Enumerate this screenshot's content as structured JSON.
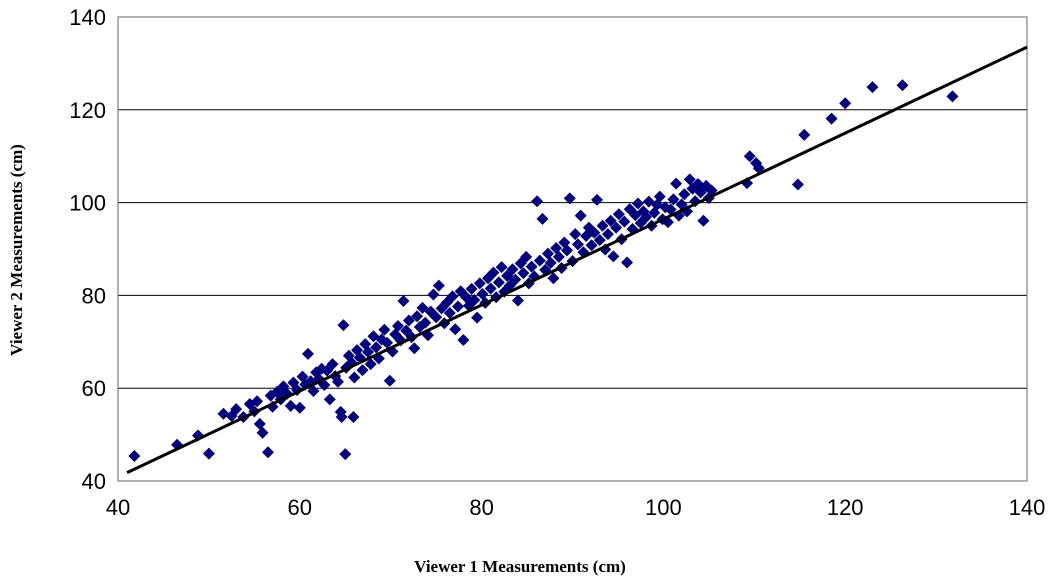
{
  "chart_data": {
    "type": "scatter",
    "title": "",
    "xlabel": "Viewer 1 Measurements (cm)",
    "ylabel": "Viewer 2 Measurements (cm)",
    "xlim": [
      40,
      140
    ],
    "ylim": [
      40,
      140
    ],
    "x_ticks": [
      "40",
      "60",
      "80",
      "100",
      "120",
      "140"
    ],
    "y_ticks": [
      "40",
      "60",
      "80",
      "100",
      "120",
      "140"
    ],
    "grid": "horizontal major gridlines",
    "legend": "none",
    "marker": "diamond",
    "colors": {
      "points": "#000080",
      "trendline": "#000000",
      "grid": "#000000",
      "frame": "#808080"
    },
    "trendline": {
      "type": "linear",
      "x": [
        41,
        140
      ],
      "y": [
        41.8,
        133.5
      ]
    },
    "series": [
      {
        "name": "",
        "points": [
          [
            41.8,
            45.4
          ],
          [
            46.5,
            47.8
          ],
          [
            48.8,
            49.8
          ],
          [
            50.0,
            45.9
          ],
          [
            51.6,
            54.5
          ],
          [
            52.5,
            54.0
          ],
          [
            53.0,
            55.5
          ],
          [
            53.8,
            53.8
          ],
          [
            54.5,
            56.6
          ],
          [
            55.0,
            55.0
          ],
          [
            55.3,
            57.2
          ],
          [
            55.6,
            52.3
          ],
          [
            55.9,
            50.4
          ],
          [
            56.5,
            46.2
          ],
          [
            56.8,
            58.4
          ],
          [
            57.0,
            56.0
          ],
          [
            57.5,
            59.2
          ],
          [
            57.9,
            57.6
          ],
          [
            58.2,
            60.4
          ],
          [
            58.6,
            58.8
          ],
          [
            59.0,
            56.2
          ],
          [
            59.3,
            61.2
          ],
          [
            59.7,
            59.6
          ],
          [
            60.0,
            55.8
          ],
          [
            60.3,
            62.5
          ],
          [
            60.6,
            60.8
          ],
          [
            60.9,
            67.4
          ],
          [
            61.2,
            61.5
          ],
          [
            61.5,
            59.4
          ],
          [
            61.8,
            63.4
          ],
          [
            62.1,
            62.0
          ],
          [
            62.4,
            64.2
          ],
          [
            62.7,
            60.7
          ],
          [
            63.0,
            63.8
          ],
          [
            63.3,
            57.6
          ],
          [
            63.6,
            65.2
          ],
          [
            63.9,
            62.6
          ],
          [
            64.2,
            61.4
          ],
          [
            64.5,
            54.9
          ],
          [
            64.6,
            53.8
          ],
          [
            64.8,
            73.6
          ],
          [
            65.0,
            45.8
          ],
          [
            65.1,
            64.4
          ],
          [
            65.4,
            67.0
          ],
          [
            65.7,
            65.5
          ],
          [
            65.9,
            53.8
          ],
          [
            66.0,
            62.3
          ],
          [
            66.3,
            68.2
          ],
          [
            66.6,
            66.6
          ],
          [
            66.9,
            63.9
          ],
          [
            67.2,
            69.5
          ],
          [
            67.5,
            67.8
          ],
          [
            67.8,
            65.2
          ],
          [
            68.1,
            71.2
          ],
          [
            68.4,
            68.8
          ],
          [
            68.7,
            66.4
          ],
          [
            69.0,
            70.5
          ],
          [
            69.3,
            72.6
          ],
          [
            69.6,
            69.8
          ],
          [
            69.9,
            61.6
          ],
          [
            70.2,
            67.9
          ],
          [
            70.5,
            71.6
          ],
          [
            70.8,
            73.4
          ],
          [
            71.1,
            70.3
          ],
          [
            71.4,
            78.8
          ],
          [
            71.7,
            72.4
          ],
          [
            72.0,
            74.6
          ],
          [
            72.3,
            71.0
          ],
          [
            72.6,
            68.6
          ],
          [
            72.9,
            75.5
          ],
          [
            73.2,
            73.2
          ],
          [
            73.5,
            77.3
          ],
          [
            73.8,
            74.1
          ],
          [
            74.1,
            71.4
          ],
          [
            74.4,
            76.5
          ],
          [
            74.7,
            80.2
          ],
          [
            75.0,
            75.3
          ],
          [
            75.3,
            82.1
          ],
          [
            75.6,
            77.2
          ],
          [
            75.9,
            74.0
          ],
          [
            76.2,
            78.5
          ],
          [
            76.5,
            76.2
          ],
          [
            76.8,
            79.8
          ],
          [
            77.1,
            72.7
          ],
          [
            77.4,
            77.6
          ],
          [
            77.7,
            80.9
          ],
          [
            78.0,
            70.4
          ],
          [
            78.3,
            79.6
          ],
          [
            78.6,
            77.8
          ],
          [
            78.9,
            81.4
          ],
          [
            79.2,
            79.0
          ],
          [
            79.5,
            75.2
          ],
          [
            79.8,
            82.6
          ],
          [
            80.1,
            80.3
          ],
          [
            80.4,
            78.4
          ],
          [
            80.7,
            83.7
          ],
          [
            81.0,
            81.5
          ],
          [
            81.3,
            84.9
          ],
          [
            81.6,
            79.6
          ],
          [
            81.9,
            82.8
          ],
          [
            82.2,
            86.1
          ],
          [
            82.5,
            80.8
          ],
          [
            82.8,
            84.2
          ],
          [
            83.1,
            82.1
          ],
          [
            83.4,
            85.6
          ],
          [
            83.7,
            83.4
          ],
          [
            84.0,
            78.9
          ],
          [
            84.3,
            86.9
          ],
          [
            84.6,
            84.8
          ],
          [
            84.9,
            88.3
          ],
          [
            85.2,
            82.6
          ],
          [
            85.5,
            86.2
          ],
          [
            85.8,
            84.1
          ],
          [
            86.1,
            100.3
          ],
          [
            86.4,
            87.5
          ],
          [
            86.7,
            96.5
          ],
          [
            87.0,
            85.5
          ],
          [
            87.3,
            89.0
          ],
          [
            87.6,
            87.0
          ],
          [
            87.9,
            83.7
          ],
          [
            88.2,
            90.2
          ],
          [
            88.5,
            88.3
          ],
          [
            88.8,
            85.9
          ],
          [
            89.1,
            91.4
          ],
          [
            89.4,
            89.7
          ],
          [
            89.7,
            100.9
          ],
          [
            90.0,
            87.4
          ],
          [
            90.3,
            93.2
          ],
          [
            90.6,
            91.0
          ],
          [
            90.9,
            97.2
          ],
          [
            91.2,
            89.3
          ],
          [
            91.5,
            92.8
          ],
          [
            91.8,
            94.6
          ],
          [
            92.1,
            90.8
          ],
          [
            92.4,
            93.5
          ],
          [
            92.7,
            100.6
          ],
          [
            93.0,
            91.9
          ],
          [
            93.3,
            95.0
          ],
          [
            93.6,
            89.9
          ],
          [
            93.9,
            93.2
          ],
          [
            94.2,
            96.1
          ],
          [
            94.5,
            88.4
          ],
          [
            94.8,
            94.6
          ],
          [
            95.1,
            97.5
          ],
          [
            95.4,
            92.1
          ],
          [
            95.7,
            95.9
          ],
          [
            96.0,
            87.1
          ],
          [
            96.3,
            98.6
          ],
          [
            96.6,
            94.3
          ],
          [
            96.9,
            97.3
          ],
          [
            97.2,
            99.8
          ],
          [
            97.5,
            95.6
          ],
          [
            97.8,
            98.1
          ],
          [
            98.1,
            96.9
          ],
          [
            98.4,
            100.2
          ],
          [
            98.7,
            95.0
          ],
          [
            99.0,
            97.8
          ],
          [
            99.3,
            99.5
          ],
          [
            99.6,
            101.3
          ],
          [
            99.9,
            96.4
          ],
          [
            100.2,
            99.0
          ],
          [
            100.5,
            95.8
          ],
          [
            100.8,
            98.5
          ],
          [
            101.1,
            100.7
          ],
          [
            101.4,
            104.1
          ],
          [
            101.7,
            97.2
          ],
          [
            102.0,
            99.6
          ],
          [
            102.3,
            101.8
          ],
          [
            102.6,
            98.1
          ],
          [
            102.9,
            105.0
          ],
          [
            103.2,
            103.0
          ],
          [
            103.5,
            100.3
          ],
          [
            103.8,
            104.0
          ],
          [
            104.1,
            102.2
          ],
          [
            104.4,
            96.1
          ],
          [
            104.7,
            103.6
          ],
          [
            105.0,
            101.0
          ],
          [
            105.3,
            102.6
          ],
          [
            109.2,
            104.2
          ],
          [
            109.5,
            110.0
          ],
          [
            110.2,
            108.5
          ],
          [
            110.5,
            107.4
          ],
          [
            114.8,
            103.9
          ],
          [
            115.5,
            114.6
          ],
          [
            118.5,
            118.1
          ],
          [
            120.0,
            121.4
          ],
          [
            123.0,
            124.9
          ],
          [
            126.3,
            125.3
          ],
          [
            131.8,
            122.9
          ]
        ]
      }
    ]
  }
}
